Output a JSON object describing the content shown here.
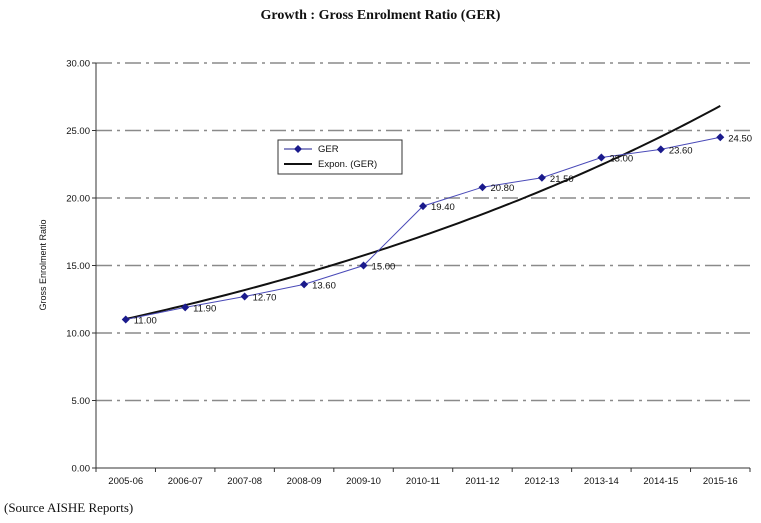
{
  "chart_data": {
    "type": "line",
    "title": "Growth : Gross Enrolment Ratio (GER)",
    "ylabel": "Gross Enrolment Ratio",
    "xlabel": "",
    "categories": [
      "2005-06",
      "2006-07",
      "2007-08",
      "2008-09",
      "2009-10",
      "2010-11",
      "2011-12",
      "2012-13",
      "2013-14",
      "2014-15",
      "2015-16"
    ],
    "series": [
      {
        "name": "GER",
        "values": [
          11.0,
          11.9,
          12.7,
          13.6,
          15.0,
          19.4,
          20.8,
          21.5,
          23.0,
          23.6,
          24.5
        ],
        "labels": [
          "11.00",
          "11.90",
          "12.70",
          "13.60",
          "15.00",
          "19.40",
          "20.80",
          "21.50",
          "23.00",
          "23.60",
          "24.50"
        ],
        "color": "#1a1a8c",
        "marker": "diamond"
      },
      {
        "name": "Expon. (GER)",
        "trendline": "exponential",
        "color": "#111111"
      }
    ],
    "ylim": [
      0,
      30
    ],
    "yticks": [
      "0.00",
      "5.00",
      "10.00",
      "15.00",
      "20.00",
      "25.00",
      "30.00"
    ],
    "grid": "dash-dot horizontal",
    "legend": "upper-left inside plot"
  },
  "source_note": "(Source AISHE Reports)"
}
